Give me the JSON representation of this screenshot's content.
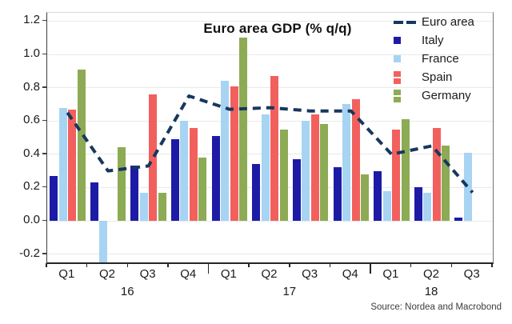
{
  "title": "Euro area GDP (% q/q)",
  "source": "Source: Nordea and Macrobond",
  "colors": {
    "euro_area_line": "#17375e",
    "italy": "#1d1ba6",
    "france": "#a7d4f2",
    "spain": "#f2605d",
    "germany": "#8dab55",
    "gridline": "#e9e9e9",
    "axis": "#262626",
    "text": "#1a1a1a"
  },
  "legend": [
    {
      "label": "Euro area",
      "marker": "dashed-line",
      "color": "#17375e"
    },
    {
      "label": "Italy",
      "marker": "square",
      "color": "#1d1ba6"
    },
    {
      "label": "France",
      "marker": "square",
      "color": "#a7d4f2"
    },
    {
      "label": "Spain",
      "marker": "double-square",
      "color": "#f2605d"
    },
    {
      "label": "Germany",
      "marker": "double-square",
      "color": "#8dab55"
    }
  ],
  "chart_data": {
    "type": "bar",
    "title": "Euro area GDP (% q/q)",
    "categories": [
      "Q1",
      "Q2",
      "Q3",
      "Q4",
      "Q1",
      "Q2",
      "Q3",
      "Q4",
      "Q1",
      "Q2",
      "Q3"
    ],
    "year_labels": [
      {
        "label": "16",
        "span": [
          0,
          3
        ]
      },
      {
        "label": "17",
        "span": [
          4,
          7
        ]
      },
      {
        "label": "18",
        "span": [
          8,
          10
        ]
      }
    ],
    "series": [
      {
        "name": "Italy",
        "type": "bar",
        "color": "#1d1ba6",
        "values": [
          0.27,
          0.23,
          0.33,
          0.49,
          0.51,
          0.34,
          0.37,
          0.32,
          0.3,
          0.2,
          0.02
        ]
      },
      {
        "name": "France",
        "type": "bar",
        "color": "#a7d4f2",
        "values": [
          0.68,
          -0.25,
          0.17,
          0.6,
          0.84,
          0.64,
          0.6,
          0.7,
          0.18,
          0.17,
          0.41
        ]
      },
      {
        "name": "Spain",
        "type": "bar",
        "color": "#f2605d",
        "values": [
          0.67,
          null,
          0.76,
          0.56,
          0.81,
          0.87,
          0.64,
          0.73,
          0.55,
          0.56,
          null
        ]
      },
      {
        "name": "Germany",
        "type": "bar",
        "color": "#8dab55",
        "values": [
          0.91,
          0.44,
          0.17,
          0.38,
          1.1,
          0.55,
          0.58,
          0.28,
          0.61,
          0.45,
          null
        ]
      },
      {
        "name": "Euro area",
        "type": "dashed-line",
        "color": "#17375e",
        "values": [
          0.65,
          0.3,
          0.33,
          0.75,
          0.67,
          0.68,
          0.66,
          0.66,
          0.4,
          0.45,
          0.17
        ]
      }
    ],
    "ylabel": "",
    "xlabel": "",
    "y_ticks": [
      -0.2,
      0.0,
      0.2,
      0.4,
      0.6,
      0.8,
      1.0,
      1.2
    ],
    "ylim": [
      -0.25,
      1.25
    ],
    "grid": true,
    "legend_position": "top-right"
  }
}
